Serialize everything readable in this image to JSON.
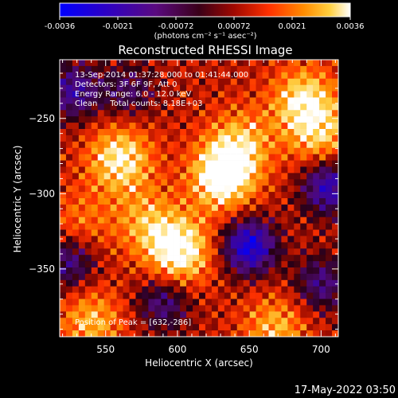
{
  "chart_data": {
    "type": "heatmap",
    "title": "Reconstructed RHESSI Image",
    "xlabel": "Heliocentric X (arcsec)",
    "ylabel": "Heliocentric Y (arcsec)",
    "xlim": [
      518,
      712
    ],
    "ylim": [
      -395,
      -211
    ],
    "xticks": [
      550,
      600,
      650,
      700
    ],
    "yticks": [
      -250,
      -300,
      -350
    ],
    "colorbar": {
      "label": "(photons cm⁻² s⁻¹ asec⁻²)",
      "range": [
        -0.0036,
        0.0036
      ],
      "ticks": [
        "-0.0036",
        "-0.0021",
        "-0.00072",
        "0.00072",
        "0.0021",
        "0.0036"
      ],
      "colormap": "blue-purple-red-orange-yellow-white"
    },
    "annotations": [
      "13-Sep-2014 01:37:28.000 to 01:41:44.000",
      "Detectors: 3F 6F 9F, Att 0",
      "Energy Range: 6.0 - 12.0 keV",
      "Clean     Total counts: 8.18E+03"
    ],
    "peak_label": "Position of Peak = [632,-286]",
    "peak": [
      632,
      -286
    ],
    "sources": [
      {
        "x": 632,
        "y": -288,
        "intensity": 1.0
      },
      {
        "x": 601,
        "y": -338,
        "intensity": 0.92
      },
      {
        "x": 560,
        "y": -277,
        "intensity": 0.78
      },
      {
        "x": 688,
        "y": -238,
        "intensity": 0.72
      },
      {
        "x": 645,
        "y": -265,
        "intensity": 0.5
      },
      {
        "x": 578,
        "y": -318,
        "intensity": 0.45
      },
      {
        "x": 532,
        "y": -320,
        "intensity": 0.35
      },
      {
        "x": 540,
        "y": -385,
        "intensity": 0.55
      },
      {
        "x": 668,
        "y": -390,
        "intensity": 0.55
      },
      {
        "x": 700,
        "y": -262,
        "intensity": 0.55
      }
    ],
    "negative_regions": [
      {
        "x": 650,
        "y": -335,
        "intensity": 0.9
      },
      {
        "x": 705,
        "y": -295,
        "intensity": 0.75
      },
      {
        "x": 528,
        "y": -232,
        "intensity": 0.6
      },
      {
        "x": 566,
        "y": -232,
        "intensity": 0.4
      },
      {
        "x": 590,
        "y": -372,
        "intensity": 0.5
      },
      {
        "x": 525,
        "y": -345,
        "intensity": 0.55
      },
      {
        "x": 700,
        "y": -360,
        "intensity": 0.5
      }
    ]
  },
  "footer": {
    "timestamp": "17-May-2022 03:50"
  }
}
